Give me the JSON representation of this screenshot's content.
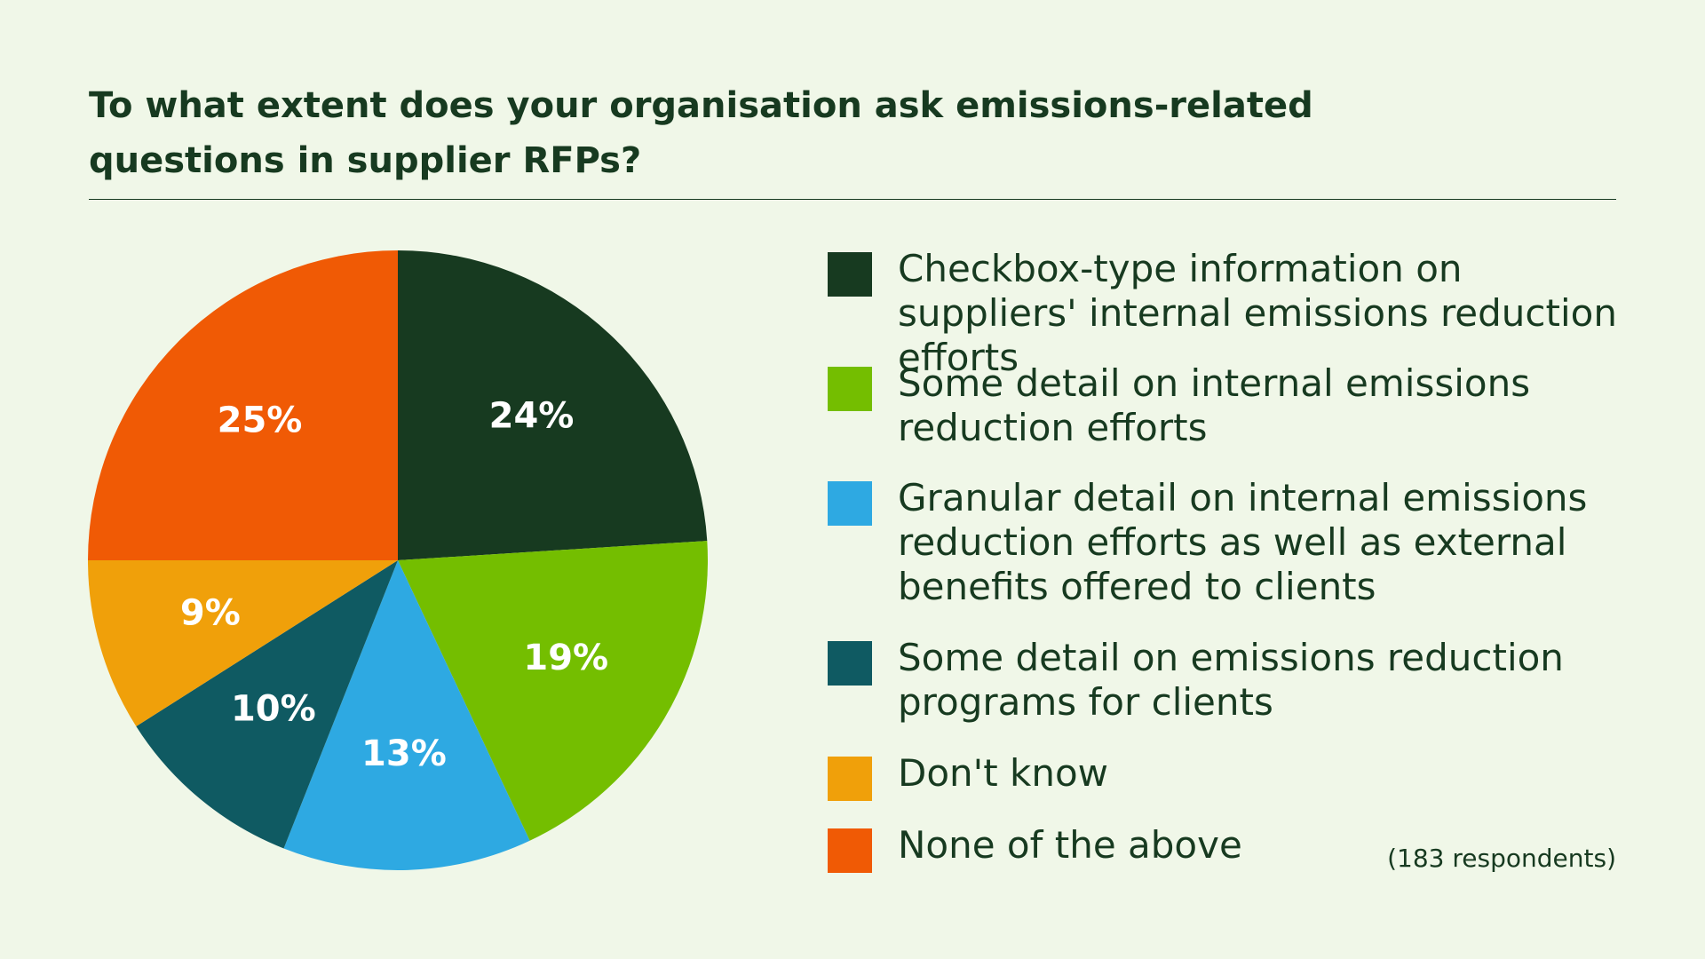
{
  "chart_data": {
    "type": "pie",
    "title": "To what extent does your organisation ask emissions-related questions in supplier RFPs?",
    "categories": [
      "Checkbox-type information on suppliers' internal emissions reduction efforts",
      "Some detail on internal emissions reduction efforts",
      "Granular detail on internal emissions reduction efforts as well as external benefits offered to clients",
      "Some detail on emissions reduction programs for clients",
      "Don't know",
      "None of the above"
    ],
    "values": [
      24,
      19,
      13,
      10,
      9,
      25
    ],
    "value_labels": [
      "24%",
      "19%",
      "13%",
      "10%",
      "9%",
      "25%"
    ],
    "colors": [
      "#173a20",
      "#74be00",
      "#2ea9e2",
      "#0f5a62",
      "#f0a00a",
      "#f05a05"
    ],
    "note": "(183 respondents)"
  }
}
